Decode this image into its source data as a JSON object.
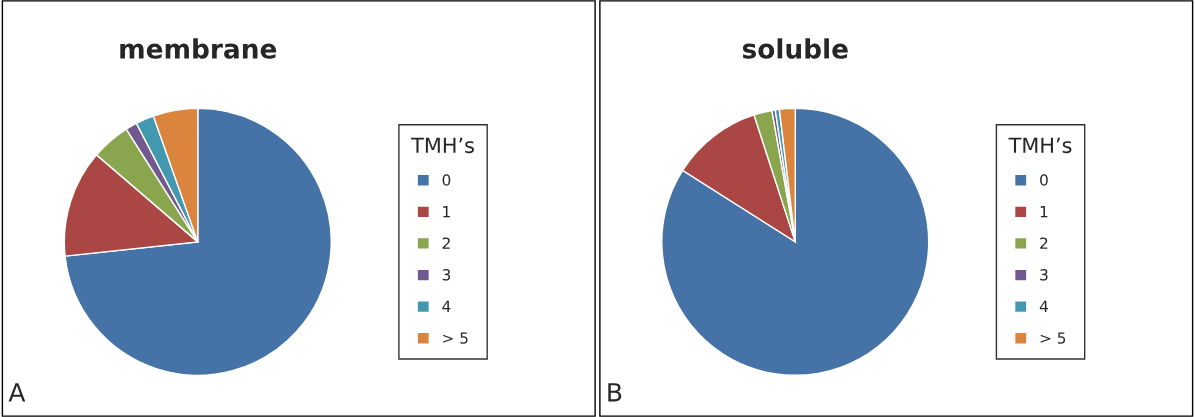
{
  "chart_data": [
    {
      "type": "pie",
      "title": "membrane",
      "legend_title": "TMH’s",
      "legend": "right",
      "annotations": [
        "A"
      ],
      "categories": [
        "0",
        "1",
        "2",
        "3",
        "4",
        "> 5"
      ],
      "values": [
        73.3,
        13,
        4.7,
        1.4,
        2.2,
        5.4
      ],
      "colors": [
        "#4572a7",
        "#aa4643",
        "#89a54e",
        "#71588f",
        "#4198af",
        "#db843d"
      ]
    },
    {
      "type": "pie",
      "title": "soluble",
      "legend_title": "TMH’s",
      "legend": "right",
      "annotations": [
        "B"
      ],
      "categories": [
        "0",
        "1",
        "2",
        "3",
        "4",
        "> 5"
      ],
      "values": [
        84,
        11,
        2.2,
        0.4,
        0.5,
        1.9
      ],
      "colors": [
        "#4572a7",
        "#aa4643",
        "#89a54e",
        "#71588f",
        "#4198af",
        "#db843d"
      ]
    }
  ]
}
